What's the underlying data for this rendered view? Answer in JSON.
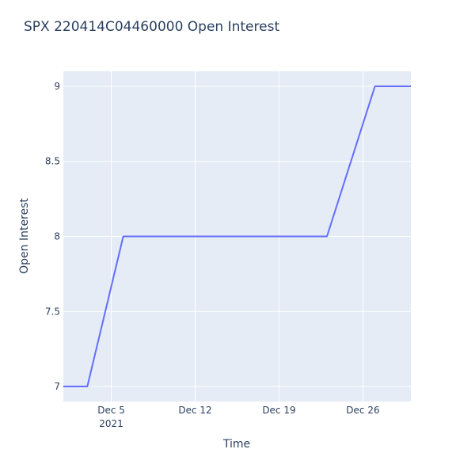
{
  "chart_data": {
    "type": "line",
    "title": "SPX   220414C04460000 Open Interest",
    "xlabel": "Time",
    "ylabel": "Open Interest",
    "x_ticks": [
      {
        "date": "2021-12-05",
        "label": "Dec 5",
        "sublabel": "2021"
      },
      {
        "date": "2021-12-12",
        "label": "Dec 12",
        "sublabel": ""
      },
      {
        "date": "2021-12-19",
        "label": "Dec 19",
        "sublabel": ""
      },
      {
        "date": "2021-12-26",
        "label": "Dec 26",
        "sublabel": ""
      }
    ],
    "y_ticks": [
      7,
      7.5,
      8,
      8.5,
      9
    ],
    "y_tick_labels": [
      "7",
      "7.5",
      "8",
      "8.5",
      "9"
    ],
    "xlim": [
      "2021-12-01",
      "2021-12-30"
    ],
    "ylim": [
      6.9,
      9.1
    ],
    "grid": true,
    "series": [
      {
        "color": "#636efa",
        "points": [
          {
            "x": "2021-12-01",
            "y": 7
          },
          {
            "x": "2021-12-03",
            "y": 7
          },
          {
            "x": "2021-12-06",
            "y": 8
          },
          {
            "x": "2021-12-23",
            "y": 8
          },
          {
            "x": "2021-12-27",
            "y": 9
          },
          {
            "x": "2021-12-30",
            "y": 9
          }
        ]
      }
    ],
    "colors": {
      "plot_bg": "#e5ecf6",
      "grid": "#ffffff",
      "text": "#2a3f5f"
    }
  }
}
